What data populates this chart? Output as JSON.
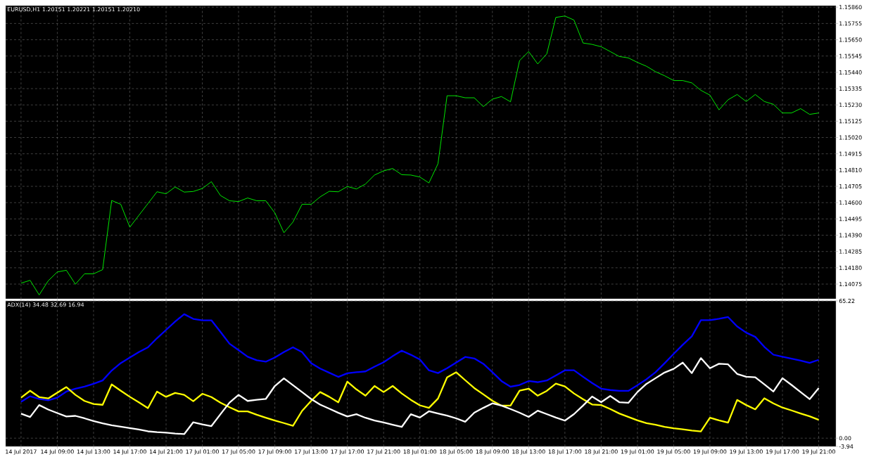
{
  "chart_data": [
    {
      "type": "line",
      "title": "EURUSD,H1  1.20151 1.20221 1.20151 1.20210",
      "categories": [
        null,
        null,
        null,
        null,
        null,
        null,
        null,
        null,
        null,
        null,
        null,
        null,
        null,
        null,
        null,
        null,
        null,
        null,
        null,
        null,
        null,
        null,
        null,
        null,
        null,
        null,
        null,
        null,
        null,
        null,
        null,
        null,
        null,
        null,
        null,
        null,
        null,
        null,
        null,
        null,
        null,
        null,
        null,
        null,
        null,
        null,
        null,
        null,
        null,
        null,
        null,
        null,
        null,
        null,
        null,
        null,
        null,
        null,
        null,
        null,
        null,
        null,
        null,
        null,
        null,
        null,
        null,
        null,
        null,
        null,
        null,
        null,
        null,
        null,
        null,
        null,
        null,
        null,
        null,
        null,
        null,
        null,
        null,
        null,
        null,
        null,
        null,
        null,
        null
      ],
      "series": [
        {
          "color": "#00ff00",
          "values": [
            1.14081,
            1.14099,
            1.14005,
            1.14096,
            1.14153,
            1.14164,
            1.14074,
            1.14141,
            1.14141,
            1.14168,
            1.14614,
            1.14589,
            1.14442,
            1.14518,
            1.14594,
            1.1467,
            1.14657,
            1.14701,
            1.14668,
            1.14672,
            1.14691,
            1.14735,
            1.14646,
            1.14612,
            1.14607,
            1.1463,
            1.14612,
            1.14612,
            1.14534,
            1.14406,
            1.14475,
            1.14589,
            1.14589,
            1.14637,
            1.14673,
            1.1467,
            1.14704,
            1.14688,
            1.1472,
            1.14778,
            1.14805,
            1.1482,
            1.1478,
            1.14778,
            1.14765,
            1.14727,
            1.14851,
            1.15289,
            1.15289,
            1.15276,
            1.15276,
            1.15219,
            1.15267,
            1.15284,
            1.1525,
            1.15516,
            1.15574,
            1.15494,
            1.15559,
            1.15794,
            1.15803,
            1.15777,
            1.15629,
            1.1562,
            1.15605,
            1.15574,
            1.15542,
            1.15533,
            1.15504,
            1.15479,
            1.15444,
            1.15418,
            1.15387,
            1.15387,
            1.15372,
            1.15324,
            1.15293,
            1.15198,
            1.15263,
            1.15297,
            1.15252,
            1.15297,
            1.15252,
            1.15234,
            1.15178,
            1.15178,
            1.15206,
            1.15169,
            1.15178
          ]
        }
      ],
      "ylim": [
        1.1398,
        1.1587
      ],
      "yticks": [
        {
          "value": 1.1586,
          "label": "1.15860"
        },
        1.15755,
        {
          "value": 1.1565,
          "label": "1.15650"
        },
        1.15545,
        {
          "value": 1.1544,
          "label": "1.15440"
        },
        1.15335,
        {
          "value": 1.1523,
          "label": "1.15230"
        },
        1.15125,
        {
          "value": 1.1502,
          "label": "1.15020"
        },
        1.14915,
        {
          "value": 1.1481,
          "label": "1.14810"
        },
        1.14705,
        {
          "value": 1.146,
          "label": "1.14600"
        },
        1.14495,
        {
          "value": 1.1439,
          "label": "1.14390"
        },
        1.14285,
        {
          "value": 1.1418,
          "label": "1.14180"
        },
        1.14075
      ],
      "grid": true,
      "tick_labels": "y"
    },
    {
      "type": "line",
      "title": "ADX(14) 34.48 32.69 16.94",
      "categories": [
        "14 Jul 2017",
        null,
        null,
        null,
        "14 Jul 09:00",
        null,
        null,
        null,
        "14 Jul 13:00",
        null,
        null,
        null,
        "14 Jul 17:00",
        null,
        null,
        null,
        "14 Jul 21:00",
        null,
        null,
        null,
        "17 Jul 01:00",
        null,
        null,
        null,
        "17 Jul 05:00",
        null,
        null,
        null,
        "17 Jul 09:00",
        null,
        null,
        null,
        "17 Jul 13:00",
        null,
        null,
        null,
        "17 Jul 17:00",
        null,
        null,
        null,
        "17 Jul 21:00",
        null,
        null,
        null,
        "18 Jul 01:00",
        null,
        null,
        null,
        "18 Jul 05:00",
        null,
        null,
        null,
        "18 Jul 09:00",
        null,
        null,
        null,
        "18 Jul 13:00",
        null,
        null,
        null,
        "18 Jul 17:00",
        null,
        null,
        null,
        "18 Jul 21:00",
        null,
        null,
        null,
        "19 Jul 01:00",
        null,
        null,
        null,
        "19 Jul 05:00",
        null,
        null,
        null,
        "19 Jul 09:00",
        null,
        null,
        null,
        "19 Jul 13:00",
        null,
        null,
        null,
        "19 Jul 17:00",
        null,
        null,
        null,
        "19 Jul 21:00"
      ],
      "series": [
        {
          "color": "#0000ff",
          "values": [
            17.29,
            19.91,
            18.62,
            17.96,
            19.25,
            22.14,
            23.47,
            24.53,
            25.82,
            27.42,
            32.13,
            35.68,
            38.3,
            40.92,
            43.18,
            47.5,
            51.44,
            55.39,
            58.91,
            56.69,
            56.02,
            56.02,
            50.52,
            44.87,
            41.85,
            38.7,
            37.01,
            36.34,
            38.3,
            40.92,
            43.18,
            40.92,
            35.68,
            33.06,
            31.1,
            29.11,
            30.83,
            31.33,
            31.73,
            33.99,
            36.08,
            38.96,
            41.59,
            39.63,
            37.37,
            32.26,
            30.93,
            33.22,
            35.91,
            38.6,
            37.9,
            35.35,
            31.33,
            27.15,
            24.46,
            25.29,
            27.15,
            26.62,
            27.42,
            29.84,
            32.26,
            32.26,
            29.17,
            26.22,
            23.53,
            22.87,
            22.47,
            22.47,
            25.16,
            27.98,
            31.33,
            35.61,
            40.06,
            44.37,
            48.39,
            56.06,
            56.06,
            56.72,
            57.55,
            53.1,
            50.15,
            48.13,
            43.41,
            39.66,
            38.73,
            37.77,
            36.84,
            35.78,
            37.24
          ]
        },
        {
          "color": "#ffff00",
          "values": [
            19.25,
            22.54,
            19.52,
            18.89,
            21.64,
            24.26,
            20.58,
            17.69,
            16.23,
            15.86,
            25.56,
            22.54,
            19.65,
            17.03,
            14.27,
            22.14,
            19.65,
            21.51,
            20.58,
            17.56,
            21.11,
            19.52,
            16.89,
            14.67,
            12.71,
            12.71,
            11.12,
            9.69,
            8.36,
            7.17,
            5.87,
            12.94,
            17.69,
            21.91,
            19.65,
            17.03,
            26.88,
            23.2,
            20.18,
            24.79,
            21.91,
            24.79,
            21.24,
            18.22,
            15.6,
            14.4,
            18.82,
            28.91,
            31.33,
            27.55,
            23.8,
            20.84,
            17.76,
            15.47,
            15.47,
            22.6,
            23.53,
            20.18,
            22.47,
            25.95,
            24.59,
            21.24,
            18.55,
            16.0,
            15.73,
            13.84,
            11.72,
            10.09,
            8.46,
            7.14,
            6.34,
            5.38,
            4.71,
            4.18,
            3.62,
            3.22,
            9.69,
            8.46,
            7.4,
            18.16,
            15.73,
            13.71,
            18.95,
            16.53,
            14.54,
            13.18,
            11.72,
            10.36,
            8.73
          ]
        },
        {
          "color": "#ffffff",
          "values": [
            11.65,
            10.06,
            15.73,
            13.61,
            11.92,
            10.32,
            10.59,
            9.43,
            8.1,
            7.04,
            6.14,
            5.48,
            4.81,
            4.15,
            3.25,
            2.85,
            2.59,
            2.19,
            1.93,
            7.57,
            6.54,
            5.74,
            11.38,
            16.89,
            20.58,
            17.69,
            18.22,
            18.62,
            24.79,
            28.44,
            25.16,
            21.91,
            18.62,
            15.96,
            14.01,
            12.05,
            10.32,
            11.38,
            9.69,
            8.36,
            7.43,
            6.41,
            5.34,
            11.38,
            9.79,
            12.78,
            11.72,
            10.75,
            9.43,
            7.8,
            12.11,
            14.4,
            16.53,
            15.47,
            13.84,
            12.11,
            10.09,
            13.04,
            11.42,
            9.82,
            8.33,
            11.42,
            15.47,
            19.78,
            17.09,
            20.05,
            17.09,
            16.79,
            21.91,
            25.82,
            28.51,
            31.2,
            32.92,
            35.91,
            30.93,
            38.04,
            33.22,
            35.35,
            35.08,
            30.53,
            29.17,
            28.91,
            25.56,
            22.17,
            28.51,
            25.29,
            21.91,
            18.55,
            23.8
          ]
        }
      ],
      "ylim": [
        -3.94,
        65.22
      ],
      "yticks": [
        65.22,
        {
          "value": 0,
          "label": "0.00"
        },
        -3.94
      ],
      "grid": true
    }
  ]
}
